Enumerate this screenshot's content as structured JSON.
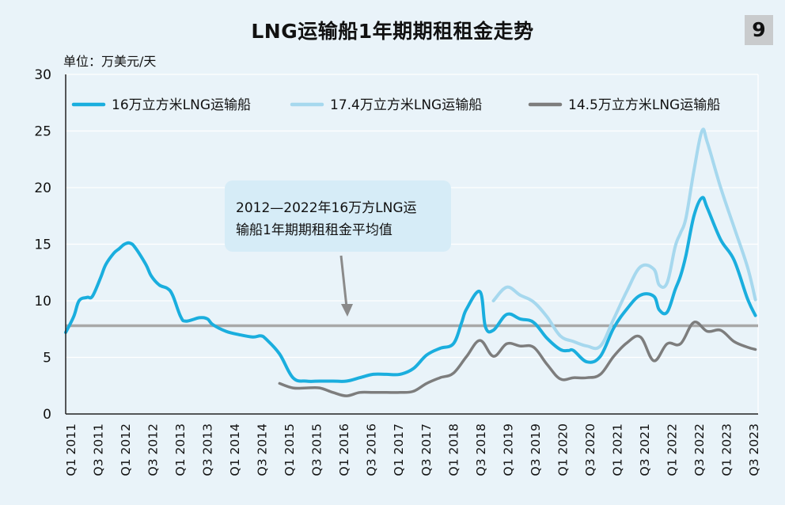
{
  "title": "LNG运输船1年期期租租金走势",
  "badge": "9",
  "unit_label": "单位：万美元/天",
  "colors": {
    "background": "#e9f3f9",
    "series_160k": "#1aaede",
    "series_174k": "#a6d8ee",
    "series_145k": "#7d7d7d",
    "average_line": "#a8a8a8",
    "callout_box": "#d6ecf7"
  },
  "annotation": {
    "line1": "2012—2022年16万方LNG运",
    "line2": "输船1年期期租租金平均值"
  },
  "chart_data": {
    "type": "line",
    "ylim": [
      0,
      30
    ],
    "yticks": [
      0,
      5,
      10,
      15,
      20,
      25,
      30
    ],
    "grid": true,
    "legend_position": "top",
    "xticklabels": [
      "Q1 2011",
      "Q3 2011",
      "Q1 2012",
      "Q3 2012",
      "Q1 2013",
      "Q3 2013",
      "Q1 2014",
      "Q3 2014",
      "Q1 2015",
      "Q3 2015",
      "Q1 2016",
      "Q3 2016",
      "Q1 2017",
      "Q3 2017",
      "Q1 2018",
      "Q3 2018",
      "Q1 2019",
      "Q3 2019",
      "Q1 2020",
      "Q3 2020",
      "Q1 2021",
      "Q3 2021",
      "Q1 2022",
      "Q3 2022",
      "Q1 2023",
      "Q3 2023"
    ],
    "average_value": 7.8,
    "series": [
      {
        "name": "16万立方米LNG运输船",
        "x": [
          2011.0,
          2011.15,
          2011.25,
          2011.4,
          2011.5,
          2011.65,
          2011.75,
          2011.9,
          2012.0,
          2012.1,
          2012.2,
          2012.3,
          2012.5,
          2012.6,
          2012.75,
          2012.9,
          2013.0,
          2013.15,
          2013.25,
          2013.5,
          2013.65,
          2013.75,
          2014.0,
          2014.25,
          2014.5,
          2014.65,
          2014.75,
          2015.0,
          2015.25,
          2015.5,
          2015.75,
          2016.0,
          2016.25,
          2016.5,
          2016.75,
          2017.0,
          2017.25,
          2017.5,
          2017.75,
          2018.0,
          2018.25,
          2018.4,
          2018.5,
          2018.75,
          2018.85,
          2019.0,
          2019.25,
          2019.5,
          2019.75,
          2020.0,
          2020.25,
          2020.4,
          2020.5,
          2020.75,
          2021.0,
          2021.25,
          2021.5,
          2021.75,
          2022.0,
          2022.1,
          2022.25,
          2022.4,
          2022.5,
          2022.6,
          2022.75,
          2022.9,
          2023.0,
          2023.25,
          2023.5,
          2023.75,
          2023.9
        ],
        "y": [
          7.2,
          8.6,
          10.0,
          10.3,
          10.4,
          12.0,
          13.2,
          14.2,
          14.6,
          15.0,
          15.1,
          14.7,
          13.2,
          12.2,
          11.4,
          11.1,
          10.5,
          8.6,
          8.2,
          8.5,
          8.4,
          7.9,
          7.3,
          7.0,
          6.8,
          6.9,
          6.6,
          5.3,
          3.2,
          2.9,
          2.9,
          2.9,
          2.9,
          3.2,
          3.5,
          3.5,
          3.5,
          4.0,
          5.2,
          5.8,
          6.2,
          8.0,
          9.3,
          10.8,
          7.7,
          7.4,
          8.8,
          8.4,
          8.1,
          6.7,
          5.7,
          5.6,
          5.6,
          4.6,
          5.1,
          7.6,
          9.3,
          10.5,
          10.4,
          9.2,
          9.0,
          11.0,
          12.2,
          14.0,
          17.5,
          19.1,
          18.2,
          15.4,
          13.6,
          10.2,
          8.7
        ]
      },
      {
        "name": "17.4万立方米LNG运输船",
        "x": [
          2019.0,
          2019.25,
          2019.5,
          2019.75,
          2020.0,
          2020.25,
          2020.5,
          2020.75,
          2021.0,
          2021.25,
          2021.5,
          2021.75,
          2022.0,
          2022.1,
          2022.25,
          2022.4,
          2022.5,
          2022.6,
          2022.75,
          2022.9,
          2023.0,
          2023.25,
          2023.5,
          2023.75,
          2023.9
        ],
        "y": [
          10.0,
          11.2,
          10.5,
          9.9,
          8.6,
          6.9,
          6.4,
          6.0,
          6.0,
          8.4,
          10.9,
          13.0,
          12.8,
          11.4,
          11.6,
          14.8,
          16.0,
          17.3,
          21.5,
          25.0,
          24.0,
          20.0,
          16.5,
          13.0,
          10.1
        ]
      },
      {
        "name": "14.5万立方米LNG运输船",
        "x": [
          2015.0,
          2015.25,
          2015.5,
          2015.75,
          2016.0,
          2016.25,
          2016.5,
          2016.75,
          2017.0,
          2017.25,
          2017.5,
          2017.75,
          2018.0,
          2018.25,
          2018.5,
          2018.75,
          2019.0,
          2019.25,
          2019.5,
          2019.75,
          2020.0,
          2020.25,
          2020.5,
          2020.75,
          2021.0,
          2021.25,
          2021.5,
          2021.75,
          2022.0,
          2022.25,
          2022.5,
          2022.75,
          2023.0,
          2023.25,
          2023.5,
          2023.75,
          2023.9
        ],
        "y": [
          2.7,
          2.3,
          2.3,
          2.3,
          1.9,
          1.6,
          1.9,
          1.9,
          1.9,
          1.9,
          2.0,
          2.7,
          3.2,
          3.6,
          5.1,
          6.5,
          5.1,
          6.2,
          6.0,
          5.9,
          4.4,
          3.1,
          3.2,
          3.2,
          3.5,
          5.1,
          6.3,
          6.8,
          4.7,
          6.2,
          6.2,
          8.1,
          7.3,
          7.4,
          6.4,
          5.9,
          5.7
        ]
      }
    ]
  }
}
